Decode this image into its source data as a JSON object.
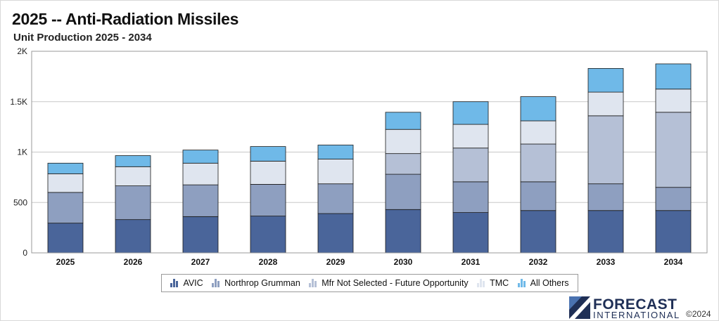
{
  "header": {
    "title": "2025 -- Anti-Radiation Missiles",
    "subtitle": "Unit Production 2025 - 2034"
  },
  "chart_data": {
    "type": "bar",
    "stacked": true,
    "title": "2025 -- Anti-Radiation Missiles",
    "subtitle": "Unit Production 2025 - 2034",
    "xlabel": "",
    "ylabel": "",
    "ylim": [
      0,
      2000
    ],
    "yticks": [
      {
        "value": 0,
        "label": "0"
      },
      {
        "value": 500,
        "label": "500"
      },
      {
        "value": 1000,
        "label": "1K"
      },
      {
        "value": 1500,
        "label": "1.5K"
      },
      {
        "value": 2000,
        "label": "2K"
      }
    ],
    "grid": true,
    "legend_position": "bottom",
    "categories": [
      "2025",
      "2026",
      "2027",
      "2028",
      "2029",
      "2030",
      "2031",
      "2032",
      "2033",
      "2034"
    ],
    "series": [
      {
        "name": "AVIC",
        "color": "#4a659a",
        "values": [
          295,
          330,
          360,
          365,
          390,
          430,
          400,
          420,
          420,
          420
        ]
      },
      {
        "name": "Northrop Grumman",
        "color": "#8e9fc0",
        "values": [
          305,
          335,
          315,
          315,
          295,
          350,
          305,
          285,
          265,
          230
        ]
      },
      {
        "name": "Mfr Not Selected - Future Opportunity",
        "color": "#b5c0d6",
        "values": [
          0,
          0,
          0,
          0,
          0,
          205,
          335,
          375,
          675,
          745
        ]
      },
      {
        "name": "TMC",
        "color": "#dfe5ef",
        "values": [
          185,
          190,
          215,
          230,
          245,
          240,
          235,
          230,
          235,
          230
        ]
      },
      {
        "name": "All Others",
        "color": "#6fb9e8",
        "values": [
          105,
          110,
          130,
          145,
          140,
          170,
          225,
          240,
          235,
          250
        ]
      }
    ]
  },
  "brand": {
    "line1": "FORECAST",
    "line2": "INTERNATIONAL",
    "copyright": "©2024"
  }
}
